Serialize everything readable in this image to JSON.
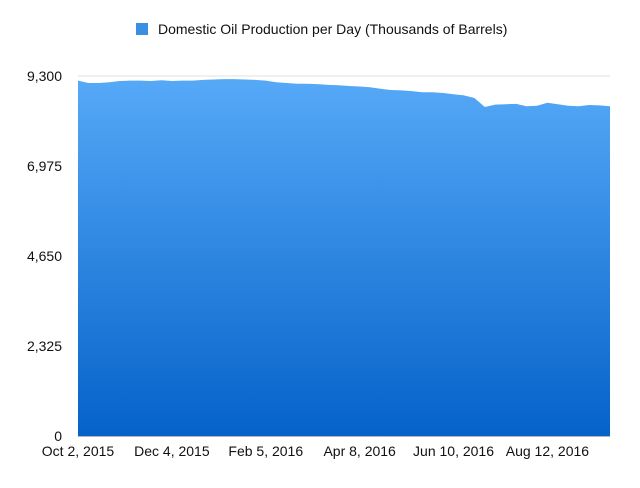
{
  "chart_data": {
    "type": "area",
    "title": "",
    "xlabel": "",
    "ylabel": "",
    "ylim": [
      0,
      9300
    ],
    "yticks": [
      "0",
      "2,325",
      "4,650",
      "6,975",
      "9,300"
    ],
    "xticks": [
      "Oct 2, 2015",
      "Dec 4, 2015",
      "Feb 5, 2016",
      "Apr 8, 2016",
      "Jun 10, 2016",
      "Aug 12, 2016"
    ],
    "grid": true,
    "legend_position": "top-center",
    "colors": {
      "fill_top": "#56a9f7",
      "fill_bottom": "#0562c9",
      "legend": "#3a8fe3"
    },
    "series": [
      {
        "name": "Domestic Oil Production per Day (Thousands of Barrels)",
        "x": [
          "2015-10-02",
          "2015-10-09",
          "2015-10-16",
          "2015-10-23",
          "2015-10-30",
          "2015-11-06",
          "2015-11-13",
          "2015-11-20",
          "2015-11-27",
          "2015-12-04",
          "2015-12-11",
          "2015-12-18",
          "2015-12-25",
          "2016-01-01",
          "2016-01-08",
          "2016-01-15",
          "2016-01-22",
          "2016-01-29",
          "2016-02-05",
          "2016-02-12",
          "2016-02-19",
          "2016-02-26",
          "2016-03-04",
          "2016-03-11",
          "2016-03-18",
          "2016-03-25",
          "2016-04-01",
          "2016-04-08",
          "2016-04-15",
          "2016-04-22",
          "2016-04-29",
          "2016-05-06",
          "2016-05-13",
          "2016-05-20",
          "2016-05-27",
          "2016-06-03",
          "2016-06-10",
          "2016-06-17",
          "2016-06-24",
          "2016-07-01",
          "2016-07-08",
          "2016-07-15",
          "2016-07-22",
          "2016-07-29",
          "2016-08-05",
          "2016-08-12",
          "2016-08-19",
          "2016-08-26",
          "2016-09-02",
          "2016-09-09",
          "2016-09-16",
          "2016-09-23"
        ],
        "values": [
          9180,
          9120,
          9120,
          9140,
          9170,
          9180,
          9180,
          9170,
          9190,
          9170,
          9180,
          9180,
          9200,
          9210,
          9220,
          9220,
          9210,
          9200,
          9180,
          9140,
          9120,
          9100,
          9100,
          9090,
          9070,
          9060,
          9040,
          9030,
          9010,
          8970,
          8940,
          8930,
          8910,
          8880,
          8880,
          8860,
          8830,
          8800,
          8730,
          8500,
          8560,
          8570,
          8580,
          8520,
          8530,
          8610,
          8570,
          8530,
          8520,
          8550,
          8540,
          8520
        ]
      }
    ]
  }
}
